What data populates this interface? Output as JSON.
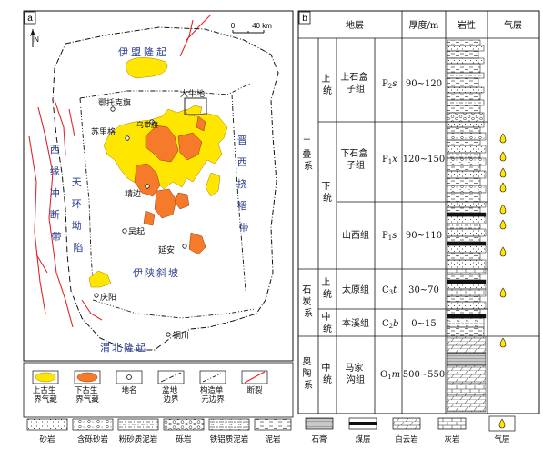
{
  "map": {
    "panel_label": "a",
    "north_label": "N",
    "scale_labels": [
      "0",
      "40 km"
    ],
    "regions": {
      "yimeng_uplift": "伊盟隆起",
      "weibei_uplift": "渭北隆起",
      "yishan_slope": "伊陕斜坡",
      "tianhuan_depression": [
        "天",
        "环",
        "坳",
        "陷"
      ],
      "jinxi_fold_belt": [
        "晋",
        "西",
        "挠",
        "褶",
        "带"
      ],
      "xiyuan_thrust_belt": [
        "西",
        "缘",
        "冲",
        "断",
        "带"
      ]
    },
    "places": {
      "ordos": "鄂托克旗",
      "daniudi": "大牛地",
      "sulige": "苏里格",
      "wushenqi": "乌审旗",
      "jingbian": "靖边",
      "wuqi": "吴起",
      "yanan": "延安",
      "qingyang": "庆阳",
      "tongchuan": "铜川"
    },
    "colors": {
      "upper_paleozoic_gas": "#FFE600",
      "lower_paleozoic_gas": "#F57A2A",
      "fault": "#E4252A",
      "basin_edge": "#111111",
      "unit_boundary": "#2C3E91",
      "label_blue": "#2C3E91"
    }
  },
  "map_legend": {
    "items": [
      {
        "label": [
          "上古生",
          "界气藏"
        ],
        "icon": "upper-gas-reservoir-icon"
      },
      {
        "label": [
          "下古生",
          "界气藏"
        ],
        "icon": "lower-gas-reservoir-icon"
      },
      {
        "label": [
          "地名"
        ],
        "icon": "place-name-icon"
      },
      {
        "label": [
          "盆地",
          "边界"
        ],
        "icon": "basin-boundary-icon"
      },
      {
        "label": [
          "构造单",
          "元边界"
        ],
        "icon": "unit-boundary-icon"
      },
      {
        "label": [
          "断裂"
        ],
        "icon": "fault-icon"
      }
    ],
    "lithology": [
      "砂岩",
      "含砾砂岩",
      "粉砂质泥岩",
      "砾岩",
      "铁铝质泥岩",
      "泥岩"
    ]
  },
  "strat": {
    "panel_label": "b",
    "headers": {
      "strata": "地层",
      "thickness": "厚度/m",
      "lithology": "岩性",
      "gas": "气层"
    },
    "system_permian": [
      "二",
      "叠",
      "系"
    ],
    "system_carboniferous": [
      "石",
      "炭",
      "系"
    ],
    "system_ordovician": [
      "奥",
      "陶",
      "系"
    ],
    "series_upper_permian": [
      "上",
      "统"
    ],
    "series_lower_permian": [
      "下",
      "统"
    ],
    "series_upper_carb": [
      "上",
      "统"
    ],
    "series_middle_carb": [
      "中",
      "统"
    ],
    "series_middle_ord": [
      "中",
      "统"
    ],
    "formations": [
      {
        "name": [
          "上石盒",
          "子组"
        ],
        "code_main": "P",
        "code_sub": "2",
        "code_suffix": "s",
        "thickness": "90~120"
      },
      {
        "name": [
          "下石盒",
          "子组"
        ],
        "code_main": "P",
        "code_sub": "1",
        "code_suffix": "x",
        "thickness": "120~150"
      },
      {
        "name": [
          "山西组"
        ],
        "code_main": "P",
        "code_sub": "1",
        "code_suffix": "s",
        "thickness": "90~110"
      },
      {
        "name": [
          "太原组"
        ],
        "code_main": "C",
        "code_sub": "3",
        "code_suffix": "t",
        "thickness": "30~70"
      },
      {
        "name": [
          "本溪组"
        ],
        "code_main": "C",
        "code_sub": "2",
        "code_suffix": "b",
        "thickness": "0~15"
      },
      {
        "name": [
          "马家",
          "沟组"
        ],
        "code_main": "O",
        "code_sub": "1",
        "code_suffix": "m",
        "thickness": "500~550"
      }
    ]
  },
  "strat_legend": [
    "石膏",
    "煤层",
    "白云岩",
    "灰岩",
    "气层"
  ]
}
